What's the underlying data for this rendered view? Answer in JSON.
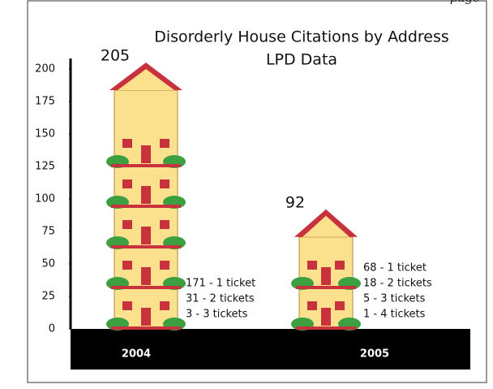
{
  "page_note": "page",
  "chart_data": {
    "type": "bar",
    "title": "Disorderly House Citations by Address",
    "subtitle": "LPD Data",
    "categories": [
      "2004",
      "2005"
    ],
    "values": [
      205,
      92
    ],
    "breakdown": [
      [
        "171 - 1 ticket",
        "31 - 2 tickets",
        "3 - 3 tickets"
      ],
      [
        "68 - 1 ticket",
        "18 - 2 tickets",
        "5 - 3 tickets",
        "1 - 4 tickets"
      ]
    ],
    "ylim": [
      0,
      200
    ],
    "yticks": [
      0,
      25,
      50,
      75,
      100,
      125,
      150,
      175,
      200
    ],
    "color": "#fbe08e",
    "roof_color": "#c8323c"
  }
}
